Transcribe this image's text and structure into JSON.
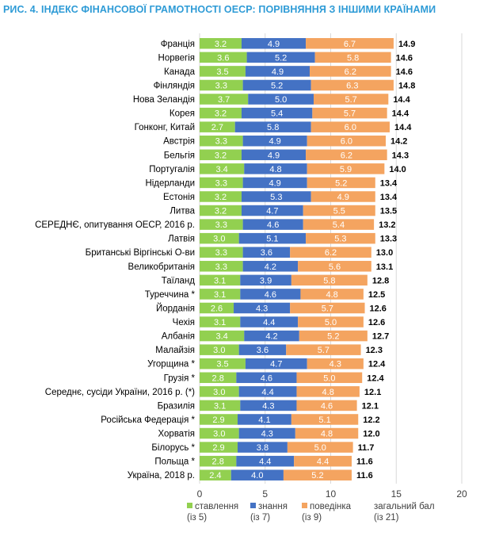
{
  "chart_data": {
    "type": "bar",
    "orientation": "horizontal",
    "stacked": true,
    "title": "РИС. 4. ІНДЕКС ФІНАНСОВОЇ ГРАМОТНОСТІ ОЕСР: ПОРІВНЯННЯ З ІНШИМИ КРАЇНАМИ",
    "xlim": [
      0,
      20
    ],
    "xticks": [
      "0",
      "5",
      "10",
      "15",
      "20"
    ],
    "grid": true,
    "legend_position": "bottom",
    "categories": [
      "Франція",
      "Норвегія",
      "Канада",
      "Фінляндія",
      "Нова Зеландія",
      "Корея",
      "Гонконг, Китай",
      "Австрія",
      "Бельгія",
      "Португалія",
      "Нідерланди",
      "Естонія",
      "Литва",
      "СЕРЕДНЄ, опитування ОЕСР, 2016 р.",
      "Латвія",
      "Британські Віргінські О-ви",
      "Великобританія",
      "Таїланд",
      "Туреччина *",
      "Йорданія",
      "Чехія",
      "Албанія",
      "Малайзія",
      "Угорщина *",
      "Грузія *",
      "Середнє, сусіди України, 2016 р. (*)",
      "Бразилія",
      "Російська Федерація *",
      "Хорватія",
      "Білорусь *",
      "Польща *",
      "Україна, 2018 р."
    ],
    "series": [
      {
        "name": "ставлення",
        "sub": "(із 5)",
        "color": "#92d050",
        "values": [
          3.2,
          3.6,
          3.5,
          3.3,
          3.7,
          3.2,
          2.7,
          3.3,
          3.2,
          3.4,
          3.3,
          3.2,
          3.2,
          3.3,
          3.0,
          3.3,
          3.3,
          3.1,
          3.1,
          2.6,
          3.1,
          3.4,
          3.0,
          3.5,
          2.8,
          3.0,
          3.1,
          2.9,
          3.0,
          2.9,
          2.8,
          2.4
        ]
      },
      {
        "name": "знання",
        "sub": "(із 7)",
        "color": "#4472c4",
        "values": [
          4.9,
          5.2,
          4.9,
          5.2,
          5.0,
          5.4,
          5.8,
          4.9,
          4.9,
          4.8,
          4.9,
          5.3,
          4.7,
          4.6,
          5.1,
          3.6,
          4.2,
          3.9,
          4.6,
          4.3,
          4.4,
          4.2,
          3.6,
          4.7,
          4.6,
          4.4,
          4.3,
          4.1,
          4.3,
          3.8,
          4.4,
          4.0
        ]
      },
      {
        "name": "поведінка",
        "sub": "(із 9)",
        "color": "#f4a460",
        "values": [
          6.7,
          5.8,
          6.2,
          6.3,
          5.7,
          5.7,
          6.0,
          6.0,
          6.2,
          5.9,
          5.2,
          4.9,
          5.5,
          5.4,
          5.3,
          6.2,
          5.6,
          5.8,
          4.8,
          5.7,
          5.0,
          5.2,
          5.7,
          4.3,
          5.0,
          4.8,
          4.6,
          5.1,
          4.8,
          5.0,
          4.4,
          5.2
        ]
      }
    ],
    "totals": {
      "name": "загальний бал",
      "sub": "(із 21)",
      "values": [
        14.9,
        14.6,
        14.6,
        14.8,
        14.4,
        14.4,
        14.4,
        14.2,
        14.3,
        14.0,
        13.4,
        13.4,
        13.5,
        13.2,
        13.3,
        13.0,
        13.1,
        12.8,
        12.5,
        12.6,
        12.6,
        12.7,
        12.3,
        12.4,
        12.4,
        12.1,
        12.1,
        12.2,
        12.0,
        11.7,
        11.6,
        11.6
      ]
    }
  }
}
